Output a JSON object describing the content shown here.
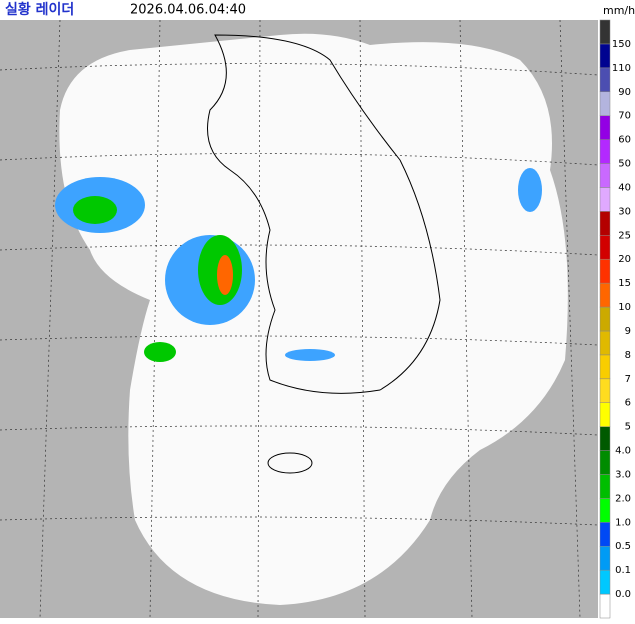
{
  "header": {
    "title": "실황 레이더",
    "time": "2026.04.06.04:40",
    "unit": "mm/h"
  },
  "legend": {
    "labels": [
      "0.0",
      "0.1",
      "0.5",
      "1.0",
      "2.0",
      "3.0",
      "4.0",
      "5",
      "6",
      "7",
      "8",
      "9",
      "10",
      "15",
      "20",
      "25",
      "30",
      "40",
      "50",
      "60",
      "70",
      "90",
      "110",
      "150"
    ],
    "colors": [
      "#ffffff",
      "#00c8ff",
      "#009bf5",
      "#0049f5",
      "#00ff00",
      "#00be00",
      "#008c00",
      "#005a00",
      "#ffff00",
      "#ffdc1f",
      "#f9cd00",
      "#e0b900",
      "#ccaa00",
      "#ff6600",
      "#ff3200",
      "#d20000",
      "#b40000",
      "#e0a9ff",
      "#c969ff",
      "#b329ff",
      "#9300e4",
      "#b3b4de",
      "#4c4eb1",
      "#000390",
      "#333333"
    ]
  }
}
